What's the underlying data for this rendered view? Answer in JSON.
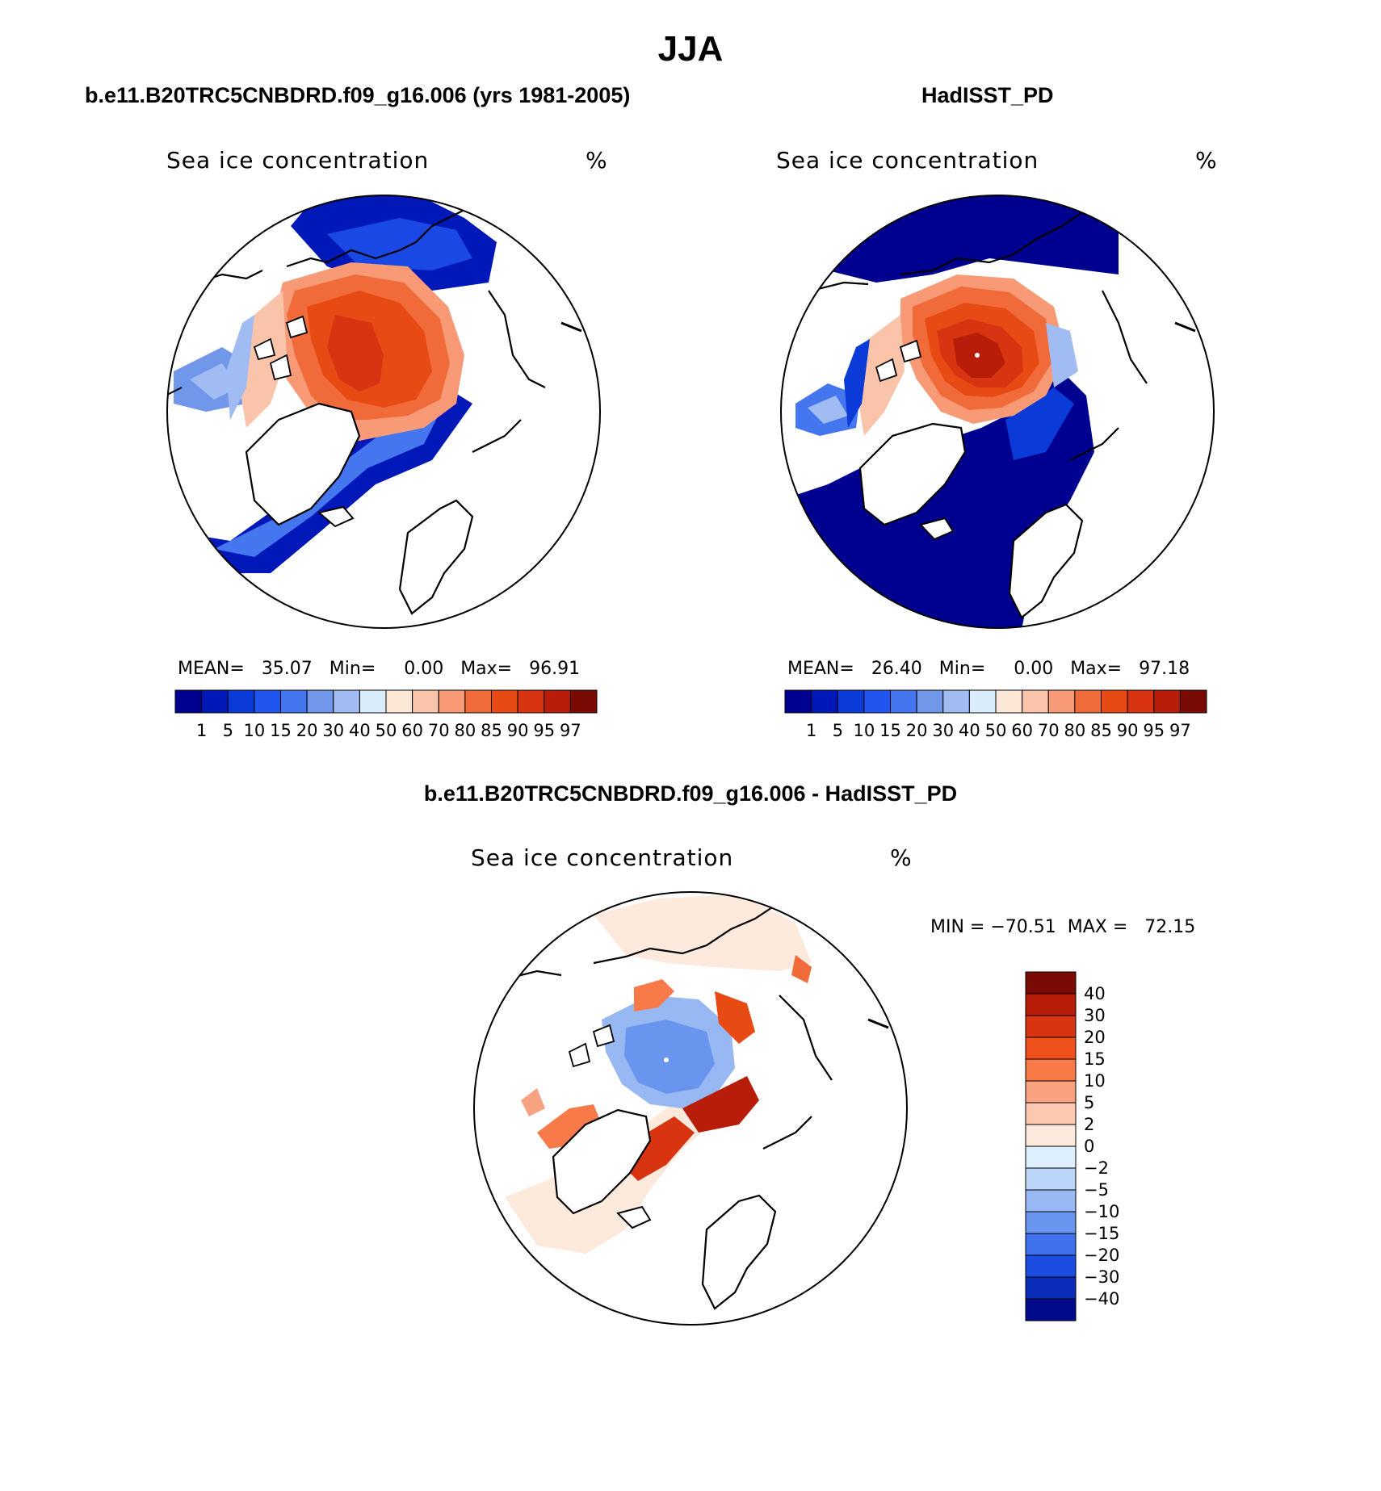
{
  "page": {
    "title": "JJA",
    "bottom_title": "b.e11.B20TRC5CNBDRD.f09_g16.006 - HadISST_PD"
  },
  "chart_data": [
    {
      "type": "heatmap",
      "projection": "north-polar-stereographic",
      "title": "b.e11.B20TRC5CNBDRD.f09_g16.006 (yrs 1981-2005)",
      "variable": "Sea ice concentration",
      "units": "%",
      "stats": {
        "mean_label": "MEAN=",
        "mean": "35.07",
        "min_label": "Min=",
        "min": "0.00",
        "max_label": "Max=",
        "max": "96.91"
      },
      "levels": [
        "1",
        "5",
        "10",
        "15",
        "20",
        "30",
        "40",
        "50",
        "60",
        "70",
        "80",
        "85",
        "90",
        "95",
        "97"
      ],
      "colors": [
        "#000090",
        "#0018b8",
        "#0a3ad8",
        "#2055f0",
        "#4476f0",
        "#7097ea",
        "#a0bcf2",
        "#d8ecfc",
        "#fde8d8",
        "#fac4aa",
        "#f79a75",
        "#f06a3a",
        "#e84a14",
        "#d93412",
        "#b81d0a",
        "#7a0b04"
      ]
    },
    {
      "type": "heatmap",
      "projection": "north-polar-stereographic",
      "title": "HadISST_PD",
      "variable": "Sea ice concentration",
      "units": "%",
      "stats": {
        "mean_label": "MEAN=",
        "mean": "26.40",
        "min_label": "Min=",
        "min": "0.00",
        "max_label": "Max=",
        "max": "97.18"
      },
      "levels": [
        "1",
        "5",
        "10",
        "15",
        "20",
        "30",
        "40",
        "50",
        "60",
        "70",
        "80",
        "85",
        "90",
        "95",
        "97"
      ],
      "colors": [
        "#000090",
        "#0018b8",
        "#0a3ad8",
        "#2055f0",
        "#4476f0",
        "#7097ea",
        "#a0bcf2",
        "#d8ecfc",
        "#fde8d8",
        "#fac4aa",
        "#f79a75",
        "#f06a3a",
        "#e84a14",
        "#d93412",
        "#b81d0a",
        "#7a0b04"
      ]
    },
    {
      "type": "heatmap",
      "projection": "north-polar-stereographic",
      "title": "b.e11.B20TRC5CNBDRD.f09_g16.006 - HadISST_PD",
      "variable": "Sea ice concentration",
      "units": "%",
      "stats": {
        "text": "MIN = −70.51  MAX =   72.15"
      },
      "levels": [
        "40",
        "30",
        "20",
        "15",
        "10",
        "5",
        "2",
        "0",
        "−2",
        "−5",
        "−10",
        "−15",
        "−20",
        "−30",
        "−40"
      ],
      "colors": [
        "#7a0b04",
        "#b81d0a",
        "#d93412",
        "#f0501c",
        "#f77a48",
        "#f9a282",
        "#fcc8b0",
        "#fdeadc",
        "#ddeefc",
        "#bcd6fa",
        "#98b8f4",
        "#6a95ee",
        "#3f70ee",
        "#1a4de0",
        "#0a2cb8",
        "#000a8a"
      ]
    }
  ]
}
